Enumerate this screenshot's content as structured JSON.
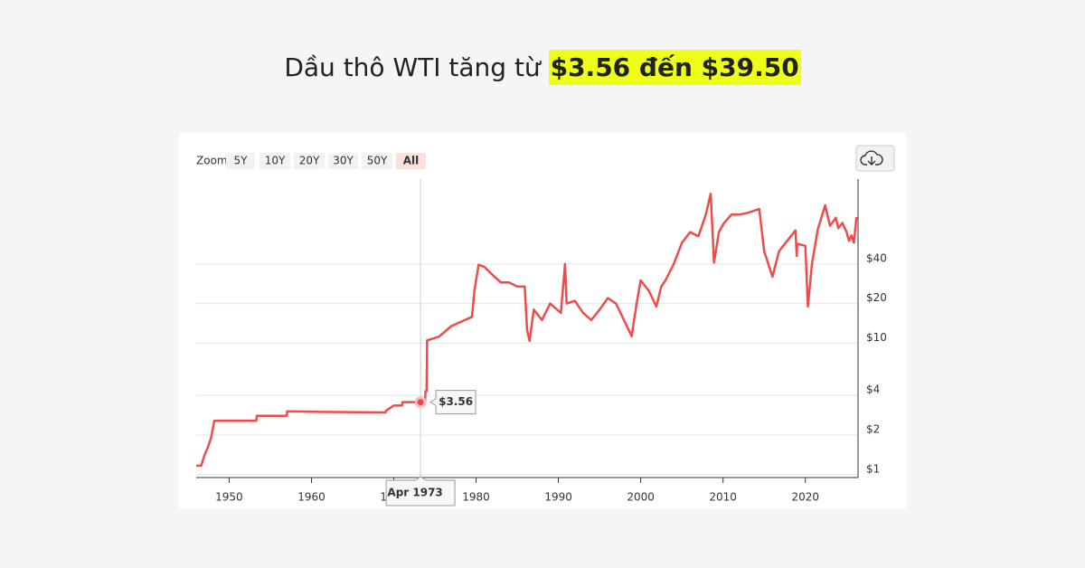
{
  "header": {
    "title": "Dầu thô WTI tăng từ",
    "title_highlight": "$3.56 đến $39.50"
  },
  "controls": {
    "zoom_label": "Zoom",
    "zoom_options": [
      "5Y",
      "10Y",
      "20Y",
      "30Y",
      "50Y",
      "All"
    ],
    "active": "All"
  },
  "chart_data": {
    "type": "line",
    "color": "#f04b4b",
    "log_scale": true,
    "grid": true,
    "x": [
      1946.0,
      1946.6,
      1947.0,
      1947.4,
      1947.8,
      1948.2,
      1953.3,
      1953.35,
      1957.0,
      1957.05,
      1961.0,
      1969.0,
      1969.05,
      1970.0,
      1971.0,
      1971.05,
      1973.25,
      1973.8,
      1973.85,
      1974.0,
      1974.05,
      1975.5,
      1977.0,
      1978.5,
      1979.5,
      1979.8,
      1980.3,
      1981.0,
      1982.0,
      1983.0,
      1984.0,
      1985.0,
      1985.9,
      1986.2,
      1986.5,
      1987.0,
      1988.0,
      1989.0,
      1990.3,
      1990.8,
      1991.0,
      1992.0,
      1993.0,
      1994.0,
      1995.0,
      1996.0,
      1997.0,
      1998.9,
      1999.5,
      2000.0,
      2001.0,
      2001.9,
      2002.5,
      2003.0,
      2004.0,
      2005.0,
      2006.0,
      2007.0,
      2007.9,
      2008.5,
      2008.9,
      2009.5,
      2010.0,
      2011.0,
      2012.0,
      2013.0,
      2014.4,
      2015.0,
      2016.0,
      2016.8,
      2017.0,
      2018.8,
      2018.95,
      2019.0,
      2020.0,
      2020.3,
      2020.8,
      2021.5,
      2022.4,
      2023.0,
      2023.7,
      2024.0,
      2024.5,
      2025.0,
      2025.3,
      2025.6,
      2025.9,
      2026.2
    ],
    "values": [
      1.17,
      1.17,
      1.4,
      1.6,
      1.9,
      2.57,
      2.57,
      2.8,
      2.8,
      3.03,
      3.0,
      2.97,
      3.07,
      3.35,
      3.35,
      3.56,
      3.56,
      3.56,
      4.31,
      4.31,
      10.5,
      11.2,
      13.5,
      14.85,
      15.85,
      25,
      39.5,
      38,
      33,
      29,
      29,
      27,
      27,
      12.5,
      10.4,
      18,
      15,
      20,
      17,
      40,
      20,
      21,
      17,
      15,
      18,
      22,
      20,
      11.3,
      20,
      30,
      25,
      19,
      27,
      30,
      40,
      58,
      70,
      65,
      95,
      137,
      41,
      70,
      80,
      95,
      95,
      98,
      105,
      50,
      32,
      50,
      52,
      72,
      46,
      57,
      55,
      19,
      40,
      73,
      112,
      78,
      90,
      75,
      82,
      70,
      60,
      66,
      58,
      91
    ],
    "xlim": [
      1946,
      2026.4
    ],
    "xticks": [
      1950,
      1960,
      1970,
      1980,
      1990,
      2000,
      2010,
      2020
    ],
    "ylim": [
      0.95,
      177
    ],
    "yticks": [
      {
        "value": 1,
        "label": "$1"
      },
      {
        "value": 2,
        "label": "$2"
      },
      {
        "value": 4,
        "label": "$4"
      },
      {
        "value": 10,
        "label": "$10"
      },
      {
        "value": 20,
        "label": "$20"
      },
      {
        "value": 40,
        "label": "$40"
      }
    ],
    "tooltip": {
      "x": 1973.25,
      "x_label": "Apr 1973",
      "value": 3.56,
      "value_label": "$3.56"
    }
  }
}
